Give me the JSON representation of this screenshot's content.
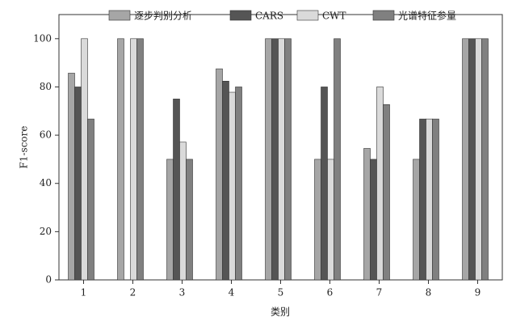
{
  "chart_data": {
    "type": "bar",
    "x_label": "类别",
    "y_label": "F1-score",
    "categories": [
      "1",
      "2",
      "3",
      "4",
      "5",
      "6",
      "7",
      "8",
      "9"
    ],
    "series": [
      {
        "name": "逐步判别分析",
        "color": "#a6a6a6",
        "values": [
          85.7,
          100,
          50,
          87.5,
          100,
          50,
          54.5,
          50,
          100
        ]
      },
      {
        "name": "CARS",
        "color": "#555555",
        "values": [
          80,
          0,
          75,
          82.4,
          100,
          80,
          50,
          66.7,
          100
        ]
      },
      {
        "name": "CWT",
        "color": "#dadada",
        "values": [
          100,
          100,
          57.1,
          77.8,
          100,
          50,
          80,
          66.7,
          100
        ]
      },
      {
        "name": "光谱特征参量",
        "color": "#808080",
        "values": [
          66.7,
          100,
          50,
          80,
          100,
          100,
          72.7,
          66.7,
          100
        ]
      }
    ],
    "ylim": [
      0,
      110
    ],
    "yticks": [
      0,
      20,
      40,
      60,
      80,
      100
    ],
    "grid": false,
    "legend": "top"
  }
}
